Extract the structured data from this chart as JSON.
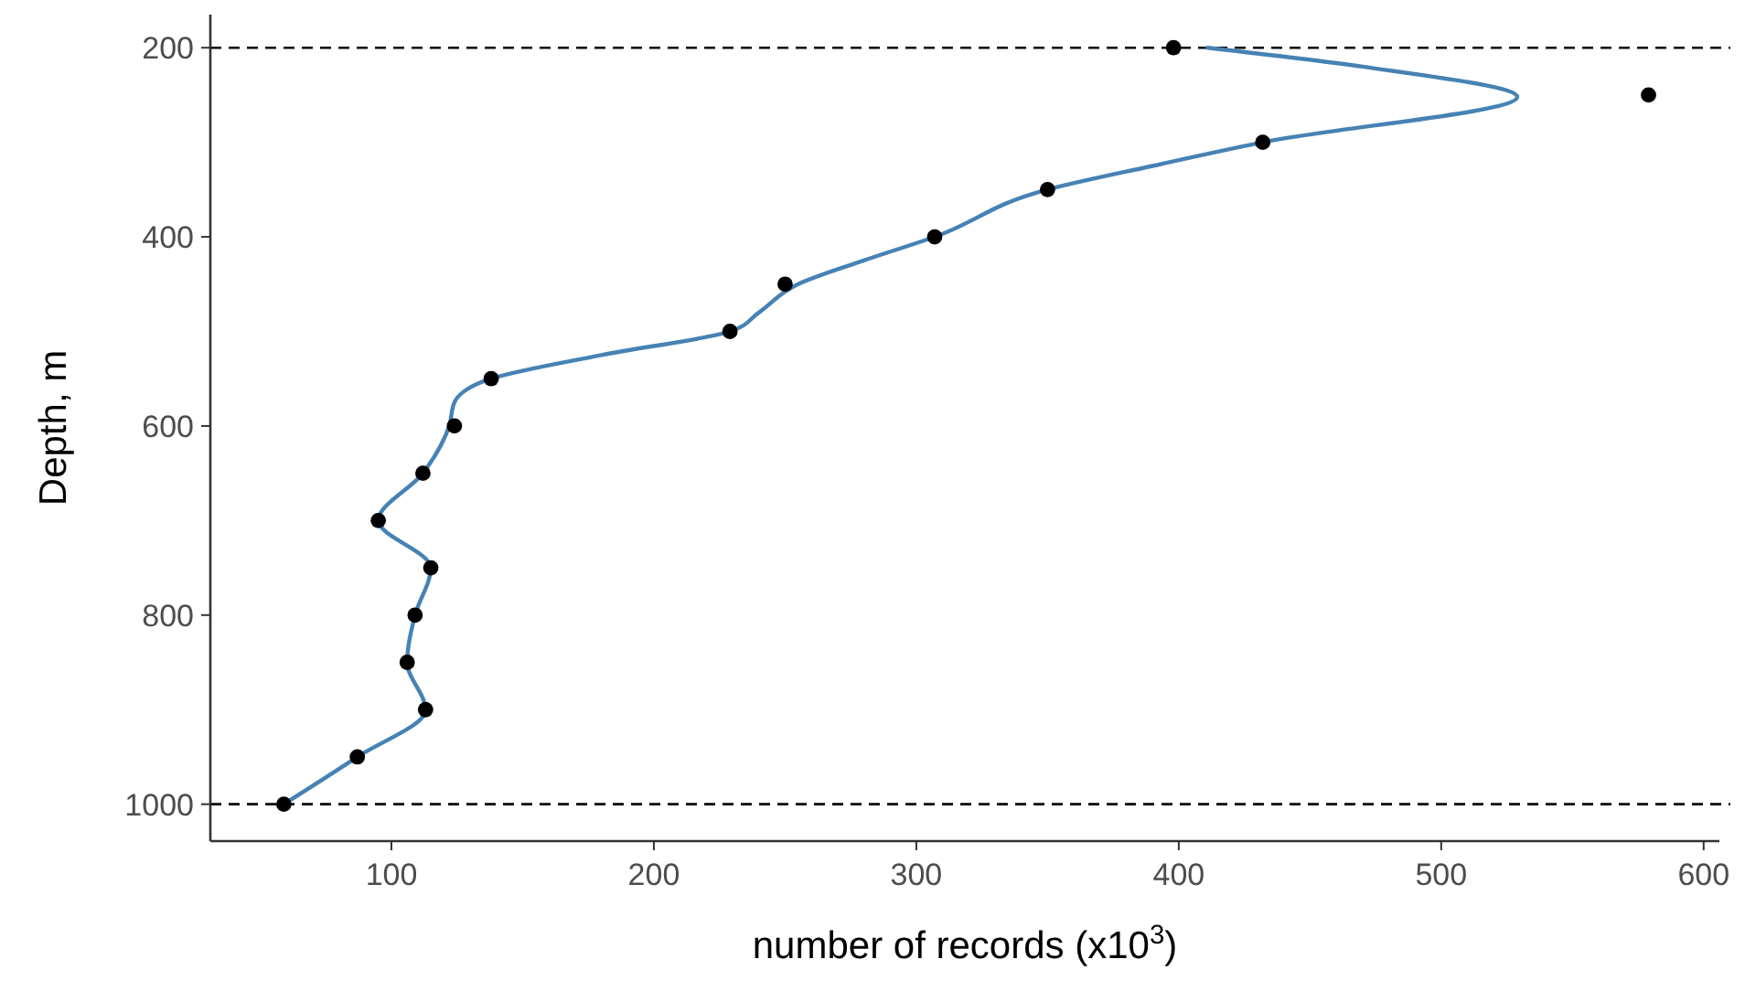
{
  "chart_data": {
    "type": "scatter",
    "xlabel": "number of records (x10$^{3}$)",
    "ylabel": "Depth, m",
    "xlim": [
      31,
      606
    ],
    "xticks": [
      100,
      200,
      300,
      400,
      500,
      600
    ],
    "ylim": [
      1039,
      165
    ],
    "yticks": [
      200,
      400,
      600,
      800,
      1000
    ],
    "grid": false,
    "series": [
      {
        "type": "line",
        "color": "#4682b4",
        "marker": "none",
        "line_style": "solid",
        "x": [
          411,
          470,
          529,
          432,
          390,
          350,
          307,
          280,
          255,
          240,
          229,
          180,
          138,
          124,
          122,
          112,
          95,
          115,
          109,
          106,
          113,
          87,
          59
        ],
        "values": [
          200,
          220,
          252,
          300,
          325,
          350,
          400,
          425,
          450,
          480,
          500,
          525,
          550,
          575,
          600,
          650,
          700,
          750,
          800,
          850,
          900,
          950,
          1000
        ]
      },
      {
        "color": "#000000",
        "marker": "circle",
        "x": [
          398,
          579,
          432,
          350,
          307,
          250,
          229,
          138,
          124,
          112,
          95,
          115,
          109,
          106,
          113,
          87,
          59
        ],
        "values": [
          200,
          250,
          300,
          350,
          400,
          450,
          500,
          550,
          600,
          650,
          700,
          750,
          800,
          850,
          900,
          950,
          1000
        ]
      }
    ],
    "ref_lines": [
      {
        "axis": "y",
        "value": 200,
        "line_style": "dashed",
        "color": "#000000"
      },
      {
        "axis": "y",
        "value": 1000,
        "line_style": "dashed",
        "color": "#000000"
      }
    ]
  }
}
